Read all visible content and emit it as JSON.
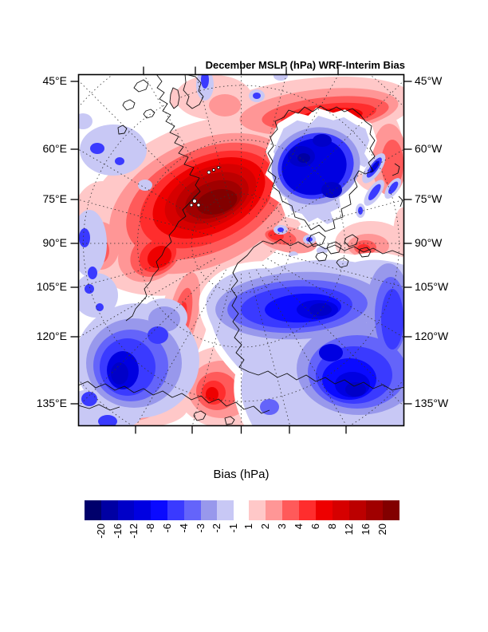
{
  "title": "December MSLP (hPa) WRF-Interim Bias",
  "axes": {
    "left_labels": [
      "45°E",
      "60°E",
      "75°E",
      "90°E",
      "105°E",
      "120°E",
      "135°E"
    ],
    "right_labels": [
      "45°W",
      "60°W",
      "75°W",
      "90°W",
      "105°W",
      "120°W",
      "135°W"
    ]
  },
  "colorbar": {
    "title": "Bias (hPa)",
    "negative_tick_labels": [
      "-20",
      "-16",
      "-12",
      "-8",
      "-6",
      "-4",
      "-3",
      "-2",
      "-1"
    ],
    "positive_tick_labels": [
      "1",
      "2",
      "3",
      "4",
      "6",
      "8",
      "12",
      "16",
      "20"
    ],
    "negative_colors": [
      "#00006B",
      "#0000A3",
      "#0000C8",
      "#0000E1",
      "#0A0AFF",
      "#3A3AFF",
      "#6464FA",
      "#9898EC",
      "#C8C8F5"
    ],
    "positive_colors": [
      "#FFC8C8",
      "#FF9696",
      "#FF5A5A",
      "#FF2D2D",
      "#EE0000",
      "#D60000",
      "#BC0000",
      "#A00000",
      "#820000"
    ]
  },
  "chart_data": {
    "type": "heatmap",
    "subtype": "filled-contour polar stereographic map",
    "title": "December MSLP (hPa) WRF-Interim Bias",
    "colorbar_title": "Bias (hPa)",
    "units": "hPa",
    "contour_levels": [
      -20,
      -16,
      -12,
      -8,
      -6,
      -4,
      -3,
      -2,
      -1,
      1,
      2,
      3,
      4,
      6,
      8,
      12,
      16,
      20
    ],
    "left_axis_meridians": [
      "45°E",
      "60°E",
      "75°E",
      "90°E",
      "105°E",
      "120°E",
      "135°E"
    ],
    "right_axis_meridians": [
      "45°W",
      "60°W",
      "75°W",
      "90°W",
      "105°W",
      "120°W",
      "135°W"
    ],
    "graticule": "dashed meridians every 15 degrees radiating from pole, dashed latitude circles",
    "features": [
      {
        "region": "central Arctic, upper-left of centre",
        "bias": "+16 to +20 (maximum, dark red core)"
      },
      {
        "region": "upper-right (Scandinavia / Norwegian Sea)",
        "bias": "-12 to -20 (deep blue minimum)"
      },
      {
        "region": "lower-right broad area (Siberia)",
        "bias": "-4 to -16 (blue band and dark blue cores)"
      },
      {
        "region": "lower-left blob (Bering/Chukchi)",
        "bias": "-6 to -12"
      },
      {
        "region": "band descending from centre to bottom-centre",
        "bias": "+2 to +8 (red)"
      },
      {
        "region": "top band and top-right rim around blue low",
        "bias": "+1 to +8 (pink/red)"
      },
      {
        "region": "corners top-left and gaps between systems",
        "bias": "-1 to +1 (white)"
      }
    ]
  }
}
